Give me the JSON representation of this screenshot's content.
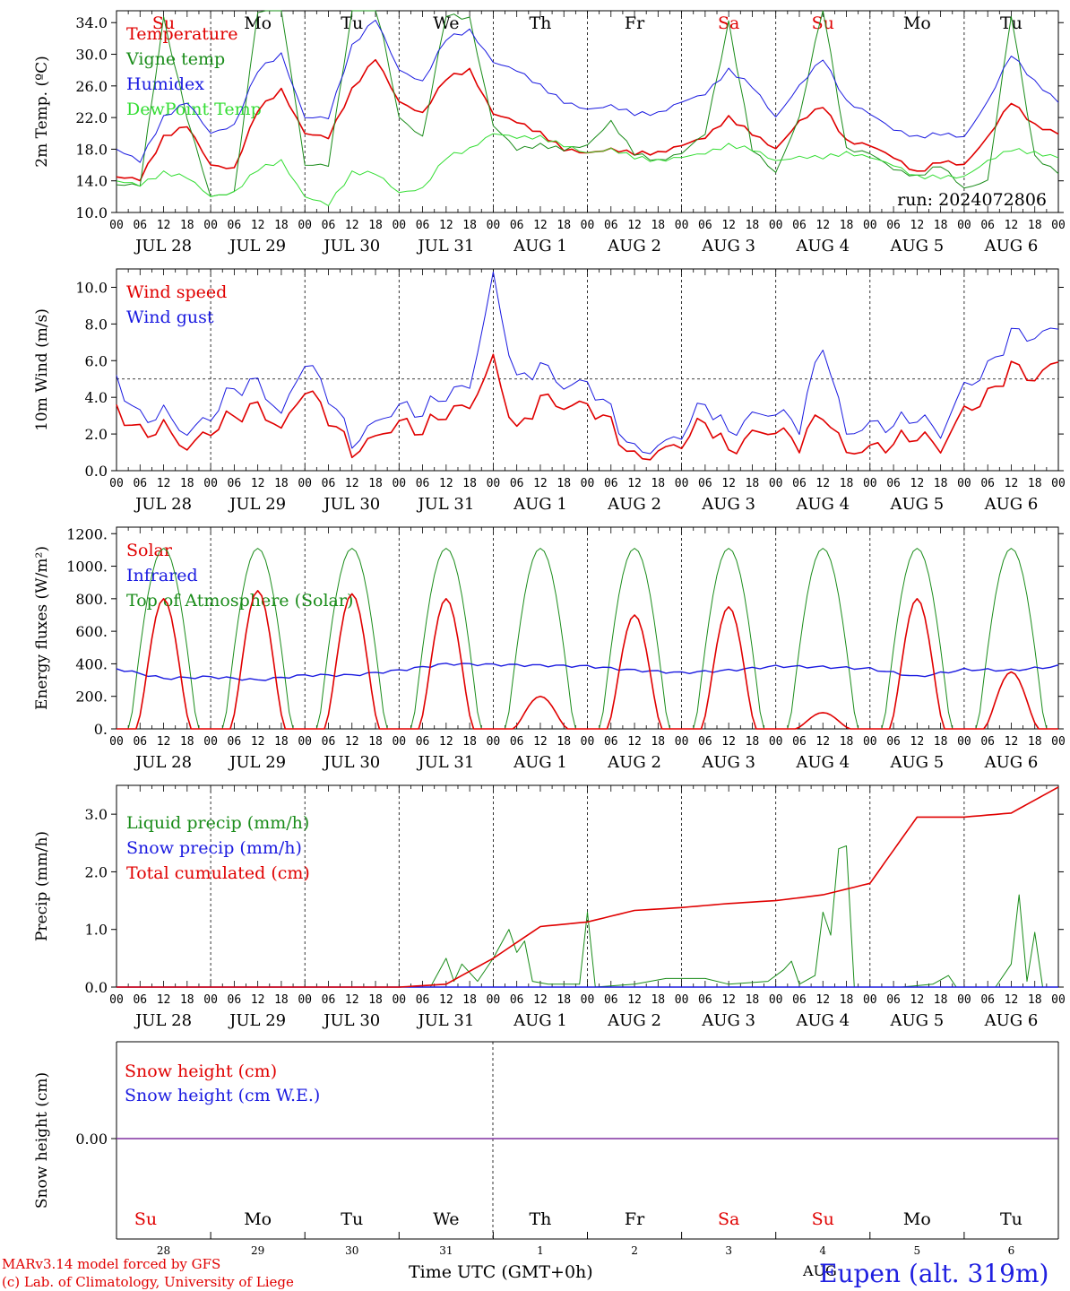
{
  "run_label": "run: 2024072806",
  "days_of_week": [
    "Su",
    "Mo",
    "Tu",
    "We",
    "Th",
    "Fr",
    "Sa",
    "Su",
    "Mo",
    "Tu"
  ],
  "weekend_color": "#e00000",
  "date_labels": [
    "JUL 28",
    "JUL 29",
    "JUL 30",
    "JUL 31",
    "AUG  1",
    "AUG  2",
    "AUG  3",
    "AUG  4",
    "AUG  5",
    "AUG  6"
  ],
  "hour_labels": [
    "00",
    "06",
    "12",
    "18"
  ],
  "day_numbers": [
    "28",
    "29",
    "30",
    "31",
    "1",
    "2",
    "3",
    "4",
    "5",
    "6"
  ],
  "footer": {
    "model": "MARv3.14 model forced by GFS",
    "lab": "(c) Lab. of Climatology, University of Liege",
    "xlabel": "Time UTC (GMT+0h)",
    "month": "AUG",
    "station": "Eupen (alt. 319m)"
  },
  "chart_data": [
    {
      "type": "line",
      "ylabel": "2m Temp. (ºC)",
      "ylim": [
        10,
        35.5
      ],
      "yticks": [
        "10.0",
        "14.0",
        "18.0",
        "22.0",
        "26.0",
        "30.0",
        "34.0"
      ],
      "ytick_values": [
        10,
        14,
        18,
        22,
        26,
        30,
        34
      ],
      "x_hours": [
        0,
        6,
        12,
        18,
        24,
        30,
        36,
        42,
        48,
        54,
        60,
        66,
        72,
        78,
        84,
        90,
        96,
        102,
        108,
        114,
        120,
        126,
        132,
        138,
        144,
        150,
        156,
        162,
        168,
        174,
        180,
        186,
        192,
        198,
        204,
        210,
        216,
        222,
        228,
        234,
        240
      ],
      "series": [
        {
          "name": "Temperature",
          "color": "#e00000",
          "values": [
            14.5,
            14.2,
            19.5,
            21.0,
            16.0,
            15.5,
            23.0,
            25.5,
            20.0,
            19.5,
            25.5,
            29.5,
            24.0,
            22.5,
            27.0,
            28.0,
            22.5,
            21.5,
            20.0,
            18.0,
            17.5,
            18.0,
            17.5,
            17.5,
            18.5,
            19.5,
            22.0,
            20.0,
            18.0,
            21.5,
            23.5,
            19.0,
            18.5,
            17.0,
            15.0,
            16.5,
            16.0,
            19.5,
            24.0,
            21.0,
            20.0
          ]
        },
        {
          "name": "Vigne temp",
          "color": "#1a8c1a",
          "values": [
            13.5,
            13.5,
            34.5,
            22.0,
            12.0,
            12.5,
            35.5,
            36.0,
            16.0,
            16.0,
            35.5,
            37.0,
            22.0,
            19.5,
            35.0,
            34.5,
            21.0,
            18.0,
            18.5,
            18.0,
            18.5,
            21.5,
            17.5,
            16.5,
            17.5,
            20.0,
            34.0,
            18.0,
            15.0,
            22.0,
            36.0,
            18.0,
            17.5,
            15.5,
            14.5,
            16.0,
            13.0,
            14.0,
            35.0,
            17.0,
            15.0
          ]
        },
        {
          "name": "Humidex",
          "color": "#1a1ae0",
          "values": [
            18.0,
            16.5,
            22.0,
            24.0,
            20.0,
            21.0,
            28.0,
            30.0,
            22.0,
            22.0,
            31.0,
            34.5,
            28.0,
            26.5,
            32.0,
            33.0,
            29.0,
            28.0,
            26.0,
            24.0,
            23.0,
            23.5,
            22.5,
            22.5,
            24.0,
            25.0,
            28.0,
            26.0,
            22.0,
            26.0,
            29.5,
            24.0,
            22.5,
            20.5,
            19.5,
            20.0,
            19.5,
            24.0,
            30.0,
            26.5,
            24.0
          ]
        },
        {
          "name": "DewPoint Temp",
          "color": "#33dd33",
          "values": [
            14.0,
            13.5,
            15.0,
            14.5,
            12.0,
            12.5,
            15.5,
            16.5,
            12.0,
            11.0,
            15.0,
            15.0,
            12.5,
            13.0,
            17.0,
            18.0,
            20.0,
            19.5,
            19.5,
            18.5,
            17.5,
            18.0,
            17.0,
            16.5,
            17.0,
            17.5,
            18.5,
            18.0,
            16.5,
            17.0,
            17.0,
            17.5,
            17.0,
            16.0,
            14.5,
            14.5,
            14.5,
            16.5,
            18.0,
            17.5,
            17.0
          ]
        }
      ]
    },
    {
      "type": "line",
      "ylabel": "10m Wind (m/s)",
      "ylim": [
        0,
        11
      ],
      "yticks": [
        "0.0",
        "2.0",
        "4.0",
        "6.0",
        "8.0",
        "10.0"
      ],
      "ytick_values": [
        0,
        2,
        4,
        6,
        8,
        10
      ],
      "reference_line": 5.0,
      "x_hours": [
        0,
        6,
        12,
        18,
        24,
        30,
        36,
        42,
        48,
        54,
        60,
        66,
        72,
        78,
        84,
        90,
        96,
        102,
        108,
        114,
        120,
        126,
        132,
        138,
        144,
        150,
        156,
        162,
        168,
        174,
        180,
        186,
        192,
        198,
        204,
        210,
        216,
        222,
        228,
        234,
        240
      ],
      "series": [
        {
          "name": "Wind speed",
          "color": "#e00000",
          "values": [
            3.4,
            2.0,
            2.4,
            1.2,
            2.2,
            3.0,
            3.5,
            2.2,
            4.5,
            3.0,
            1.0,
            1.8,
            2.6,
            2.2,
            3.2,
            3.5,
            6.0,
            2.0,
            4.0,
            3.5,
            3.6,
            2.5,
            0.6,
            1.0,
            1.5,
            2.8,
            1.0,
            2.0,
            2.2,
            1.5,
            3.2,
            1.0,
            1.2,
            1.5,
            2.0,
            1.2,
            3.3,
            4.0,
            5.7,
            5.0,
            6.0
          ]
        },
        {
          "name": "Wind gust",
          "color": "#1a1ae0",
          "values": [
            5.0,
            2.8,
            3.2,
            2.0,
            3.0,
            4.5,
            4.8,
            3.0,
            6.0,
            4.2,
            1.5,
            2.6,
            3.5,
            3.2,
            4.2,
            4.6,
            10.5,
            4.8,
            5.8,
            4.6,
            4.8,
            3.2,
            1.0,
            1.3,
            2.0,
            3.8,
            2.0,
            3.0,
            3.2,
            2.5,
            7.0,
            2.0,
            2.5,
            2.5,
            3.0,
            2.0,
            4.6,
            5.5,
            7.5,
            7.3,
            7.8
          ]
        }
      ]
    },
    {
      "type": "line",
      "ylabel": "Energy fluxes (W/m²)",
      "ylim": [
        0,
        1240
      ],
      "yticks": [
        "0.",
        "200.",
        "400.",
        "600.",
        "800.",
        "1000.",
        "1200."
      ],
      "ytick_values": [
        0,
        200,
        400,
        600,
        800,
        1000,
        1200
      ],
      "series": [
        {
          "name": "Solar",
          "color": "#e00000",
          "peaks": [
            800,
            850,
            830,
            800,
            200,
            700,
            750,
            100,
            800,
            350
          ]
        },
        {
          "name": "Infrared",
          "color": "#1a1ae0",
          "values": [
            370,
            310,
            320,
            300,
            330,
            330,
            360,
            400,
            395,
            390,
            385,
            360,
            345,
            360,
            385,
            380,
            370,
            320,
            365,
            360,
            385
          ]
        },
        {
          "name": "Top of Atmosphere (Solar)",
          "color": "#1a8c1a",
          "peak": 1110
        }
      ]
    },
    {
      "type": "line",
      "ylabel": "Precip (mm/h)",
      "ylim": [
        0,
        3.5
      ],
      "yticks": [
        "0.0",
        "1.0",
        "2.0",
        "3.0"
      ],
      "ytick_values": [
        0,
        1,
        2,
        3
      ],
      "series": [
        {
          "name": "Liquid precip (mm/h)",
          "color": "#1a8c1a"
        },
        {
          "name": "Snow precip (mm/h)",
          "color": "#1a1ae0"
        },
        {
          "name": "Total cumulated (cm)",
          "color": "#e00000",
          "x_hours": [
            0,
            72,
            84,
            96,
            108,
            120,
            132,
            144,
            156,
            168,
            180,
            192,
            204,
            216,
            228,
            240
          ],
          "values": [
            0,
            0,
            0.05,
            0.5,
            1.05,
            1.13,
            1.33,
            1.38,
            1.45,
            1.5,
            1.6,
            1.8,
            2.95,
            2.95,
            3.02,
            3.47
          ]
        }
      ]
    },
    {
      "type": "line",
      "ylabel": "Snow height (cm)",
      "yticks": [
        "0.00"
      ],
      "ytick_values": [
        0
      ],
      "series": [
        {
          "name": "Snow height (cm)",
          "color": "#e00000"
        },
        {
          "name": "Snow height (cm W.E.)",
          "color": "#1a1ae0"
        }
      ]
    }
  ]
}
